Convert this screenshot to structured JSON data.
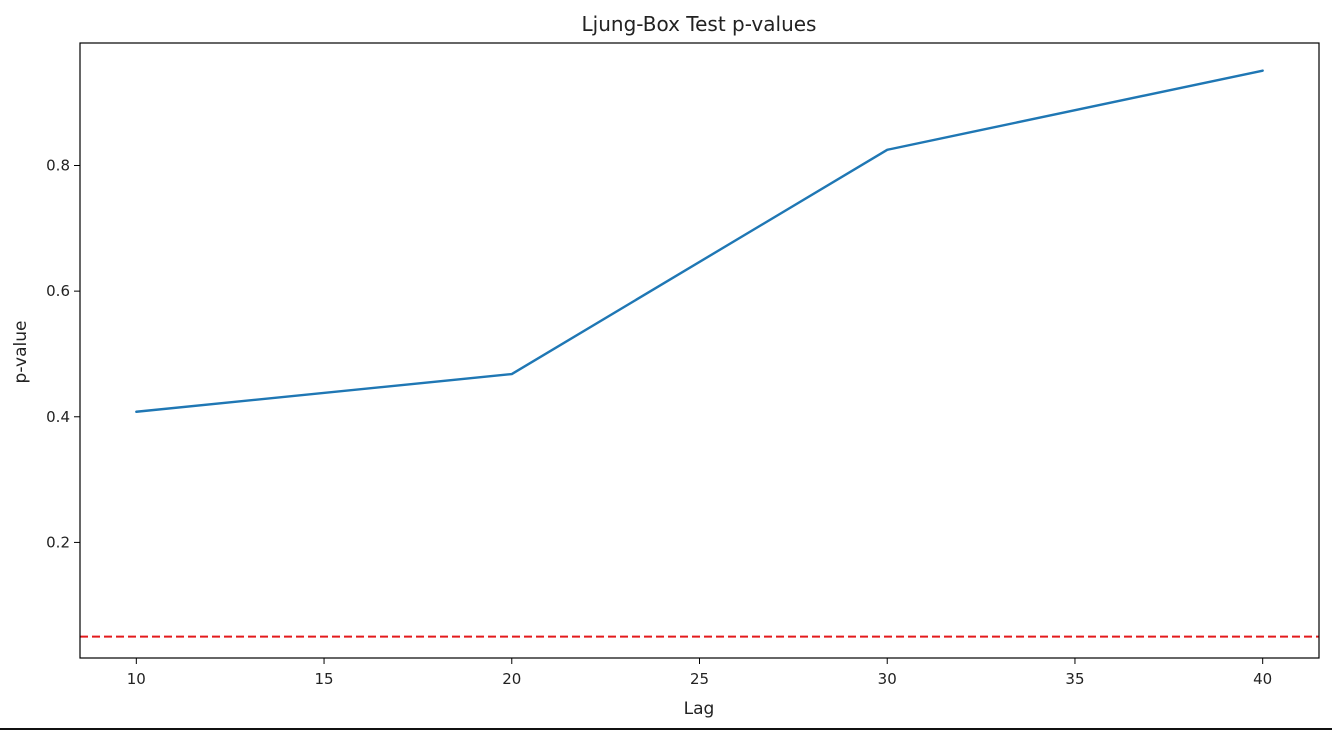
{
  "chart_data": {
    "type": "line",
    "title": "Ljung-Box Test p-values",
    "xlabel": "Lag",
    "ylabel": "p-value",
    "x": [
      10,
      20,
      30,
      40
    ],
    "series": [
      {
        "values": [
          0.408,
          0.468,
          0.825,
          0.951
        ],
        "color": "#1f77b4"
      }
    ],
    "reference_line": {
      "y": 0.05,
      "color": "#e31a1c",
      "style": "dashed"
    },
    "xlim": [
      8.5,
      41.5
    ],
    "ylim": [
      0.016,
      0.995
    ],
    "xticks": [
      10,
      15,
      20,
      25,
      30,
      35,
      40
    ],
    "xtick_labels": [
      "10",
      "15",
      "20",
      "25",
      "30",
      "35",
      "40"
    ],
    "yticks": [
      0.2,
      0.4,
      0.6,
      0.8
    ],
    "ytick_labels": [
      "0.2",
      "0.4",
      "0.6",
      "0.8"
    ],
    "grid": false,
    "legend": "none"
  }
}
